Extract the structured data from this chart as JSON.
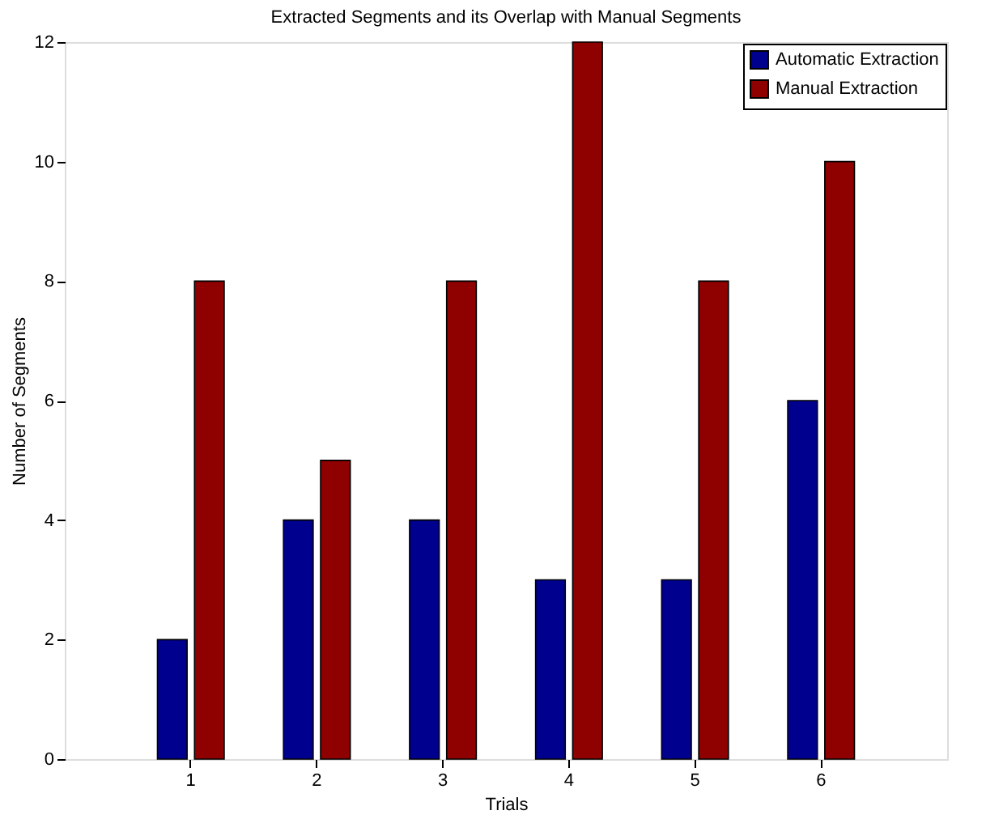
{
  "chart_data": {
    "type": "bar",
    "title": "Extracted Segments and its Overlap with Manual Segments",
    "xlabel": "Trials",
    "ylabel": "Number of Segments",
    "categories": [
      "1",
      "2",
      "3",
      "4",
      "5",
      "6"
    ],
    "series": [
      {
        "name": "Automatic Extraction",
        "color": "#00008f",
        "values": [
          2,
          4,
          4,
          3,
          3,
          6
        ]
      },
      {
        "name": "Manual Extraction",
        "color": "#8f0000",
        "values": [
          8,
          5,
          8,
          12,
          8,
          10
        ]
      }
    ],
    "ylim": [
      0,
      12
    ],
    "yticks": [
      0,
      2,
      4,
      6,
      8,
      10,
      12
    ],
    "legend": "top right",
    "grid": false
  }
}
